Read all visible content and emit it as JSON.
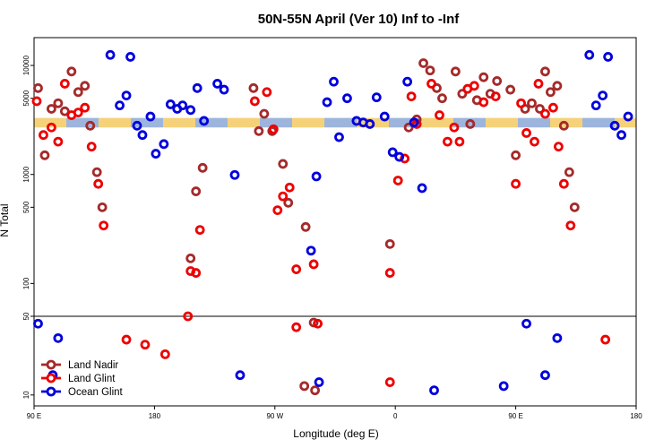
{
  "chart_data": {
    "type": "scatter",
    "title": "50N-55N April (Ver 10)   Inf to -Inf",
    "xlabel": "Longitude (deg E)",
    "ylabel": "N Total",
    "x_ticks": [
      {
        "value": 90,
        "label": "90 E"
      },
      {
        "value": 180,
        "label": "180"
      },
      {
        "value": 270,
        "label": "90 W"
      },
      {
        "value": 360,
        "label": "0"
      },
      {
        "value": 450,
        "label": "90 E"
      },
      {
        "value": 540,
        "label": "180"
      }
    ],
    "xlim": [
      90,
      540
    ],
    "upper_panel": {
      "scale": "log",
      "ylim": [
        50,
        18000
      ],
      "y_ticks": [
        100,
        500,
        1000,
        5000,
        10000
      ]
    },
    "lower_panel": {
      "scale": "log",
      "ylim": [
        8,
        50
      ],
      "y_ticks": [
        10,
        50
      ]
    },
    "band": {
      "y_low": 2700,
      "y_high": 3300,
      "colors": [
        "#f5d27a",
        "#9db5dc"
      ]
    },
    "legend_position": "bottom-left",
    "series": [
      {
        "name": "Land Nadir",
        "color": "#a52a2a",
        "points": [
          {
            "x": 93,
            "y": 6200
          },
          {
            "x": 98,
            "y": 1500
          },
          {
            "x": 103,
            "y": 4000
          },
          {
            "x": 108,
            "y": 4500
          },
          {
            "x": 113,
            "y": 3800
          },
          {
            "x": 118,
            "y": 8800
          },
          {
            "x": 123,
            "y": 5700
          },
          {
            "x": 128,
            "y": 6500
          },
          {
            "x": 132,
            "y": 2800
          },
          {
            "x": 137,
            "y": 1050
          },
          {
            "x": 141,
            "y": 500
          },
          {
            "x": 254,
            "y": 6200
          },
          {
            "x": 258,
            "y": 2500
          },
          {
            "x": 262,
            "y": 3600
          },
          {
            "x": 268,
            "y": 2500
          },
          {
            "x": 276,
            "y": 1250
          },
          {
            "x": 280,
            "y": 550
          },
          {
            "x": 293,
            "y": 330
          },
          {
            "x": 216,
            "y": 1150
          },
          {
            "x": 211,
            "y": 700
          },
          {
            "x": 207,
            "y": 170
          },
          {
            "x": 356,
            "y": 230
          },
          {
            "x": 370,
            "y": 2700
          },
          {
            "x": 376,
            "y": 3200
          },
          {
            "x": 381,
            "y": 10500
          },
          {
            "x": 386,
            "y": 9000
          },
          {
            "x": 391,
            "y": 6200
          },
          {
            "x": 395,
            "y": 5000
          },
          {
            "x": 405,
            "y": 8800
          },
          {
            "x": 410,
            "y": 5500
          },
          {
            "x": 416,
            "y": 2900
          },
          {
            "x": 421,
            "y": 4800
          },
          {
            "x": 426,
            "y": 7800
          },
          {
            "x": 431,
            "y": 5500
          },
          {
            "x": 436,
            "y": 7200
          },
          {
            "x": 446,
            "y": 6000
          },
          {
            "x": 450,
            "y": 1500
          },
          {
            "x": 457,
            "y": 4000
          },
          {
            "x": 462,
            "y": 4500
          },
          {
            "x": 468,
            "y": 4000
          },
          {
            "x": 472,
            "y": 8800
          },
          {
            "x": 476,
            "y": 5700
          },
          {
            "x": 481,
            "y": 6500
          },
          {
            "x": 486,
            "y": 2800
          },
          {
            "x": 490,
            "y": 1050
          },
          {
            "x": 494,
            "y": 500
          },
          {
            "x": 292,
            "y": 12
          },
          {
            "x": 299,
            "y": 44
          },
          {
            "x": 300,
            "y": 11
          }
        ]
      },
      {
        "name": "Land Glint",
        "color": "#ee0000",
        "points": [
          {
            "x": 92,
            "y": 4700
          },
          {
            "x": 97,
            "y": 2300
          },
          {
            "x": 103,
            "y": 2700
          },
          {
            "x": 108,
            "y": 2000
          },
          {
            "x": 113,
            "y": 6800
          },
          {
            "x": 118,
            "y": 3500
          },
          {
            "x": 123,
            "y": 3700
          },
          {
            "x": 128,
            "y": 4100
          },
          {
            "x": 133,
            "y": 1800
          },
          {
            "x": 138,
            "y": 820
          },
          {
            "x": 142,
            "y": 340
          },
          {
            "x": 255,
            "y": 4700
          },
          {
            "x": 264,
            "y": 5700
          },
          {
            "x": 269,
            "y": 2600
          },
          {
            "x": 276,
            "y": 630
          },
          {
            "x": 281,
            "y": 760
          },
          {
            "x": 272,
            "y": 470
          },
          {
            "x": 214,
            "y": 310
          },
          {
            "x": 211,
            "y": 125
          },
          {
            "x": 207,
            "y": 130
          },
          {
            "x": 205,
            "y": 50
          },
          {
            "x": 286,
            "y": 135
          },
          {
            "x": 299,
            "y": 150
          },
          {
            "x": 356,
            "y": 125
          },
          {
            "x": 362,
            "y": 880
          },
          {
            "x": 367,
            "y": 1400
          },
          {
            "x": 372,
            "y": 5200
          },
          {
            "x": 376,
            "y": 2900
          },
          {
            "x": 387,
            "y": 6800
          },
          {
            "x": 393,
            "y": 3500
          },
          {
            "x": 399,
            "y": 2000
          },
          {
            "x": 404,
            "y": 2700
          },
          {
            "x": 408,
            "y": 2000
          },
          {
            "x": 414,
            "y": 6100
          },
          {
            "x": 419,
            "y": 6500
          },
          {
            "x": 426,
            "y": 4600
          },
          {
            "x": 435,
            "y": 5200
          },
          {
            "x": 450,
            "y": 820
          },
          {
            "x": 454,
            "y": 4500
          },
          {
            "x": 458,
            "y": 2400
          },
          {
            "x": 464,
            "y": 2000
          },
          {
            "x": 467,
            "y": 6800
          },
          {
            "x": 472,
            "y": 3600
          },
          {
            "x": 478,
            "y": 4100
          },
          {
            "x": 482,
            "y": 1800
          },
          {
            "x": 486,
            "y": 820
          },
          {
            "x": 491,
            "y": 340
          },
          {
            "x": 159,
            "y": 31
          },
          {
            "x": 173,
            "y": 28
          },
          {
            "x": 188,
            "y": 23
          },
          {
            "x": 286,
            "y": 40
          },
          {
            "x": 302,
            "y": 43
          },
          {
            "x": 356,
            "y": 13
          },
          {
            "x": 517,
            "y": 31
          }
        ]
      },
      {
        "name": "Ocean Glint",
        "color": "#0000dd",
        "points": [
          {
            "x": 147,
            "y": 12500
          },
          {
            "x": 154,
            "y": 4300
          },
          {
            "x": 159,
            "y": 5300
          },
          {
            "x": 162,
            "y": 12000
          },
          {
            "x": 167,
            "y": 2800
          },
          {
            "x": 171,
            "y": 2300
          },
          {
            "x": 177,
            "y": 3400
          },
          {
            "x": 181,
            "y": 1550
          },
          {
            "x": 187,
            "y": 1900
          },
          {
            "x": 192,
            "y": 4400
          },
          {
            "x": 197,
            "y": 4000
          },
          {
            "x": 201,
            "y": 4300
          },
          {
            "x": 207,
            "y": 3900
          },
          {
            "x": 212,
            "y": 6200
          },
          {
            "x": 217,
            "y": 3100
          },
          {
            "x": 227,
            "y": 6800
          },
          {
            "x": 232,
            "y": 6000
          },
          {
            "x": 240,
            "y": 990
          },
          {
            "x": 297,
            "y": 200
          },
          {
            "x": 301,
            "y": 960
          },
          {
            "x": 309,
            "y": 4600
          },
          {
            "x": 314,
            "y": 7100
          },
          {
            "x": 318,
            "y": 2200
          },
          {
            "x": 324,
            "y": 5000
          },
          {
            "x": 331,
            "y": 3100
          },
          {
            "x": 336,
            "y": 3000
          },
          {
            "x": 341,
            "y": 2900
          },
          {
            "x": 346,
            "y": 5100
          },
          {
            "x": 352,
            "y": 3400
          },
          {
            "x": 358,
            "y": 1600
          },
          {
            "x": 363,
            "y": 1450
          },
          {
            "x": 369,
            "y": 7100
          },
          {
            "x": 374,
            "y": 3000
          },
          {
            "x": 380,
            "y": 750
          },
          {
            "x": 505,
            "y": 12500
          },
          {
            "x": 510,
            "y": 4300
          },
          {
            "x": 515,
            "y": 5300
          },
          {
            "x": 519,
            "y": 12000
          },
          {
            "x": 524,
            "y": 2800
          },
          {
            "x": 529,
            "y": 2300
          },
          {
            "x": 534,
            "y": 3400
          },
          {
            "x": 93,
            "y": 43
          },
          {
            "x": 108,
            "y": 32
          },
          {
            "x": 244,
            "y": 15
          },
          {
            "x": 303,
            "y": 13
          },
          {
            "x": 389,
            "y": 11
          },
          {
            "x": 441,
            "y": 12
          },
          {
            "x": 458,
            "y": 43
          },
          {
            "x": 472,
            "y": 15
          },
          {
            "x": 481,
            "y": 32
          },
          {
            "x": 104,
            "y": 15
          }
        ]
      }
    ]
  }
}
